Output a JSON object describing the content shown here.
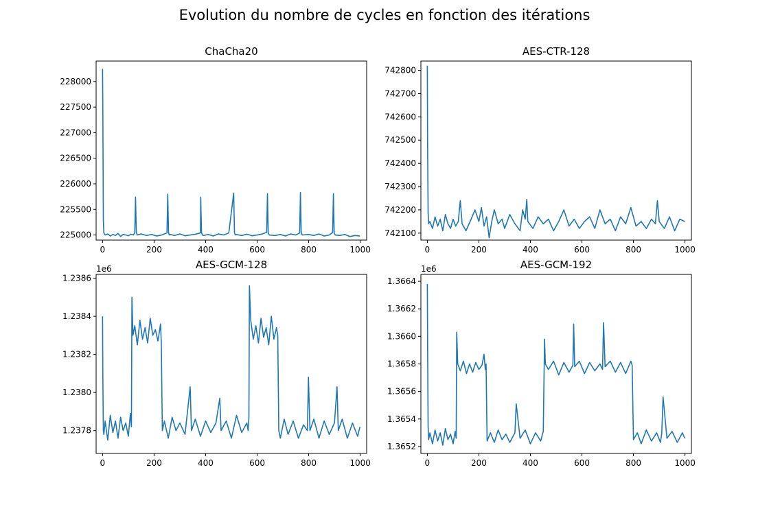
{
  "figure": {
    "suptitle": "Evolution du nombre de cycles en fonction des itérations"
  },
  "chart_data": [
    {
      "type": "line",
      "title": "ChaCha20",
      "xlabel": "",
      "ylabel": "",
      "xlim": [
        -25,
        1025
      ],
      "ylim": [
        224900,
        228400
      ],
      "xticks": [
        0,
        200,
        400,
        600,
        800,
        1000
      ],
      "yticks": [
        225000,
        225500,
        226000,
        226500,
        227000,
        227500,
        228000
      ],
      "ytick_labels": [
        "225000",
        "225500",
        "226000",
        "226500",
        "227000",
        "227500",
        "228000"
      ],
      "offset_text": "",
      "color": "#1f77b4",
      "series": [
        {
          "x": [
            0,
            1,
            3,
            5,
            10,
            20,
            30,
            40,
            50,
            60,
            70,
            80,
            90,
            100,
            110,
            120,
            125,
            128,
            131,
            135,
            150,
            170,
            190,
            210,
            230,
            250,
            253,
            256,
            259,
            263,
            280,
            300,
            320,
            340,
            360,
            380,
            381,
            384,
            387,
            391,
            410,
            430,
            450,
            470,
            490,
            509,
            512,
            515,
            519,
            540,
            560,
            580,
            600,
            620,
            637,
            640,
            643,
            647,
            670,
            690,
            710,
            730,
            750,
            765,
            768,
            771,
            775,
            800,
            820,
            840,
            860,
            880,
            893,
            896,
            899,
            903,
            920,
            940,
            960,
            980,
            999
          ],
          "y": [
            228250,
            227500,
            225300,
            225040,
            225000,
            225020,
            224980,
            225010,
            224990,
            225030,
            224970,
            225010,
            225000,
            224985,
            225015,
            225000,
            225050,
            225740,
            225050,
            225000,
            225020,
            224990,
            225010,
            224980,
            225000,
            225040,
            225800,
            225050,
            225000,
            225010,
            224990,
            225020,
            224985,
            225000,
            225015,
            225040,
            225740,
            225050,
            225000,
            224990,
            225010,
            224980,
            225020,
            225000,
            225040,
            225820,
            225050,
            225000,
            225010,
            224990,
            225015,
            224985,
            225000,
            225020,
            225050,
            225810,
            225040,
            225000,
            224990,
            225010,
            224980,
            225020,
            225000,
            225040,
            225830,
            225050,
            225000,
            225010,
            224990,
            225020,
            224980,
            225000,
            225050,
            225810,
            225040,
            225000,
            224990,
            225010,
            224970,
            224990,
            224980
          ]
        }
      ]
    },
    {
      "type": "line",
      "title": "AES-CTR-128",
      "xlabel": "",
      "ylabel": "",
      "xlim": [
        -25,
        1025
      ],
      "ylim": [
        742070,
        742840
      ],
      "xticks": [
        0,
        200,
        400,
        600,
        800,
        1000
      ],
      "yticks": [
        742100,
        742200,
        742300,
        742400,
        742500,
        742600,
        742700,
        742800
      ],
      "ytick_labels": [
        "742100",
        "742200",
        "742300",
        "742400",
        "742500",
        "742600",
        "742700",
        "742800"
      ],
      "offset_text": "",
      "color": "#1f77b4",
      "series": [
        {
          "x": [
            0,
            1,
            3,
            5,
            10,
            20,
            30,
            40,
            50,
            60,
            70,
            80,
            90,
            100,
            110,
            120,
            128,
            135,
            150,
            170,
            185,
            200,
            210,
            220,
            230,
            240,
            250,
            260,
            275,
            290,
            300,
            320,
            340,
            360,
            370,
            380,
            386,
            390,
            410,
            430,
            450,
            470,
            490,
            510,
            530,
            550,
            570,
            590,
            610,
            630,
            650,
            670,
            690,
            710,
            730,
            750,
            770,
            790,
            810,
            830,
            850,
            870,
            885,
            893,
            900,
            920,
            940,
            960,
            980,
            999
          ],
          "y": [
            742820,
            742500,
            742190,
            742140,
            742150,
            742120,
            742170,
            742130,
            742160,
            742110,
            742180,
            742140,
            742120,
            742160,
            742130,
            742150,
            742240,
            742140,
            742110,
            742160,
            742200,
            742150,
            742210,
            742130,
            742170,
            742080,
            742150,
            742200,
            742140,
            742160,
            742120,
            742180,
            742140,
            742110,
            742200,
            742160,
            742245,
            742150,
            742120,
            742170,
            742140,
            742160,
            742110,
            742150,
            742200,
            742130,
            742160,
            742120,
            742150,
            742170,
            742120,
            742200,
            742140,
            742160,
            742110,
            742170,
            742140,
            742210,
            742130,
            742150,
            742120,
            742160,
            742140,
            742240,
            742150,
            742120,
            742170,
            742110,
            742160,
            742150
          ]
        }
      ]
    },
    {
      "type": "line",
      "title": "AES-GCM-128",
      "xlabel": "",
      "ylabel": "",
      "xlim": [
        -25,
        1025
      ],
      "ylim": [
        1237680,
        1238620
      ],
      "xticks": [
        0,
        200,
        400,
        600,
        800,
        1000
      ],
      "yticks": [
        1237800,
        1238000,
        1238200,
        1238400,
        1238600
      ],
      "ytick_labels": [
        "1.2378",
        "1.2380",
        "1.2382",
        "1.2384",
        "1.2386"
      ],
      "offset_text": "1e6",
      "color": "#1f77b4",
      "series": [
        {
          "x": [
            0,
            1,
            3,
            5,
            10,
            20,
            30,
            40,
            50,
            60,
            70,
            80,
            90,
            100,
            108,
            112,
            114,
            118,
            125,
            135,
            145,
            155,
            165,
            175,
            185,
            195,
            205,
            215,
            225,
            228,
            232,
            240,
            255,
            270,
            285,
            300,
            320,
            340,
            345,
            360,
            380,
            400,
            420,
            440,
            455,
            460,
            480,
            500,
            520,
            540,
            560,
            565,
            568,
            570,
            575,
            585,
            595,
            605,
            615,
            625,
            635,
            645,
            655,
            665,
            675,
            680,
            684,
            690,
            705,
            720,
            740,
            760,
            780,
            795,
            799,
            805,
            820,
            840,
            860,
            880,
            900,
            910,
            915,
            930,
            950,
            970,
            990,
            999
          ],
          "y": [
            1238400,
            1238100,
            1237800,
            1237780,
            1237850,
            1237750,
            1237880,
            1237790,
            1237850,
            1237760,
            1237870,
            1237800,
            1237840,
            1237770,
            1237890,
            1237820,
            1238500,
            1238300,
            1238350,
            1238250,
            1238380,
            1238280,
            1238340,
            1238260,
            1238390,
            1238300,
            1238330,
            1238270,
            1238360,
            1238260,
            1237800,
            1237850,
            1237760,
            1237870,
            1237800,
            1237840,
            1237780,
            1238030,
            1237800,
            1237860,
            1237770,
            1237850,
            1237790,
            1237840,
            1237970,
            1237800,
            1237850,
            1237760,
            1237880,
            1237790,
            1237840,
            1237800,
            1237870,
            1238560,
            1238380,
            1238280,
            1238350,
            1238260,
            1238390,
            1238290,
            1238340,
            1238250,
            1238400,
            1238280,
            1238340,
            1238300,
            1237800,
            1237760,
            1237860,
            1237780,
            1237850,
            1237760,
            1237830,
            1237800,
            1238080,
            1237800,
            1237860,
            1237760,
            1237850,
            1237780,
            1237840,
            1238030,
            1237800,
            1237860,
            1237760,
            1237840,
            1237770,
            1237820
          ]
        }
      ]
    },
    {
      "type": "line",
      "title": "AES-GCM-192",
      "xlabel": "",
      "ylabel": "",
      "xlim": [
        -25,
        1025
      ],
      "ylim": [
        1365150,
        1366450
      ],
      "xticks": [
        0,
        200,
        400,
        600,
        800,
        1000
      ],
      "yticks": [
        1365200,
        1365400,
        1365600,
        1365800,
        1366000,
        1366200,
        1366400
      ],
      "ytick_labels": [
        "1.3652",
        "1.3654",
        "1.3656",
        "1.3658",
        "1.3660",
        "1.3662",
        "1.3664"
      ],
      "offset_text": "1e6",
      "color": "#1f77b4",
      "series": [
        {
          "x": [
            0,
            1,
            3,
            5,
            10,
            20,
            30,
            40,
            50,
            60,
            70,
            80,
            90,
            100,
            108,
            112,
            114,
            118,
            128,
            140,
            152,
            164,
            176,
            188,
            200,
            212,
            220,
            225,
            228,
            232,
            245,
            260,
            275,
            290,
            305,
            320,
            340,
            345,
            360,
            380,
            400,
            420,
            440,
            450,
            455,
            458,
            470,
            490,
            510,
            530,
            550,
            565,
            568,
            572,
            590,
            610,
            630,
            650,
            670,
            680,
            684,
            690,
            710,
            730,
            750,
            770,
            790,
            795,
            800,
            815,
            830,
            850,
            870,
            890,
            905,
            910,
            915,
            930,
            950,
            970,
            990,
            999
          ],
          "y": [
            1366380,
            1366000,
            1365350,
            1365250,
            1365300,
            1365220,
            1365320,
            1365240,
            1365300,
            1365210,
            1365330,
            1365250,
            1365290,
            1365220,
            1365310,
            1365260,
            1366030,
            1365800,
            1365750,
            1365820,
            1365730,
            1365800,
            1365740,
            1365810,
            1365760,
            1365790,
            1365870,
            1365760,
            1365800,
            1365240,
            1365300,
            1365230,
            1365320,
            1365250,
            1365290,
            1365230,
            1365300,
            1365510,
            1365260,
            1365320,
            1365220,
            1365300,
            1365240,
            1365310,
            1365980,
            1365800,
            1365760,
            1365820,
            1365720,
            1365810,
            1365740,
            1365790,
            1366090,
            1365780,
            1365820,
            1365730,
            1365810,
            1365750,
            1365800,
            1365760,
            1366100,
            1365780,
            1365820,
            1365740,
            1365810,
            1365730,
            1365820,
            1365790,
            1365250,
            1365300,
            1365220,
            1365320,
            1365240,
            1365300,
            1365230,
            1365300,
            1365560,
            1365260,
            1365310,
            1365230,
            1365300,
            1365260
          ]
        }
      ]
    }
  ]
}
